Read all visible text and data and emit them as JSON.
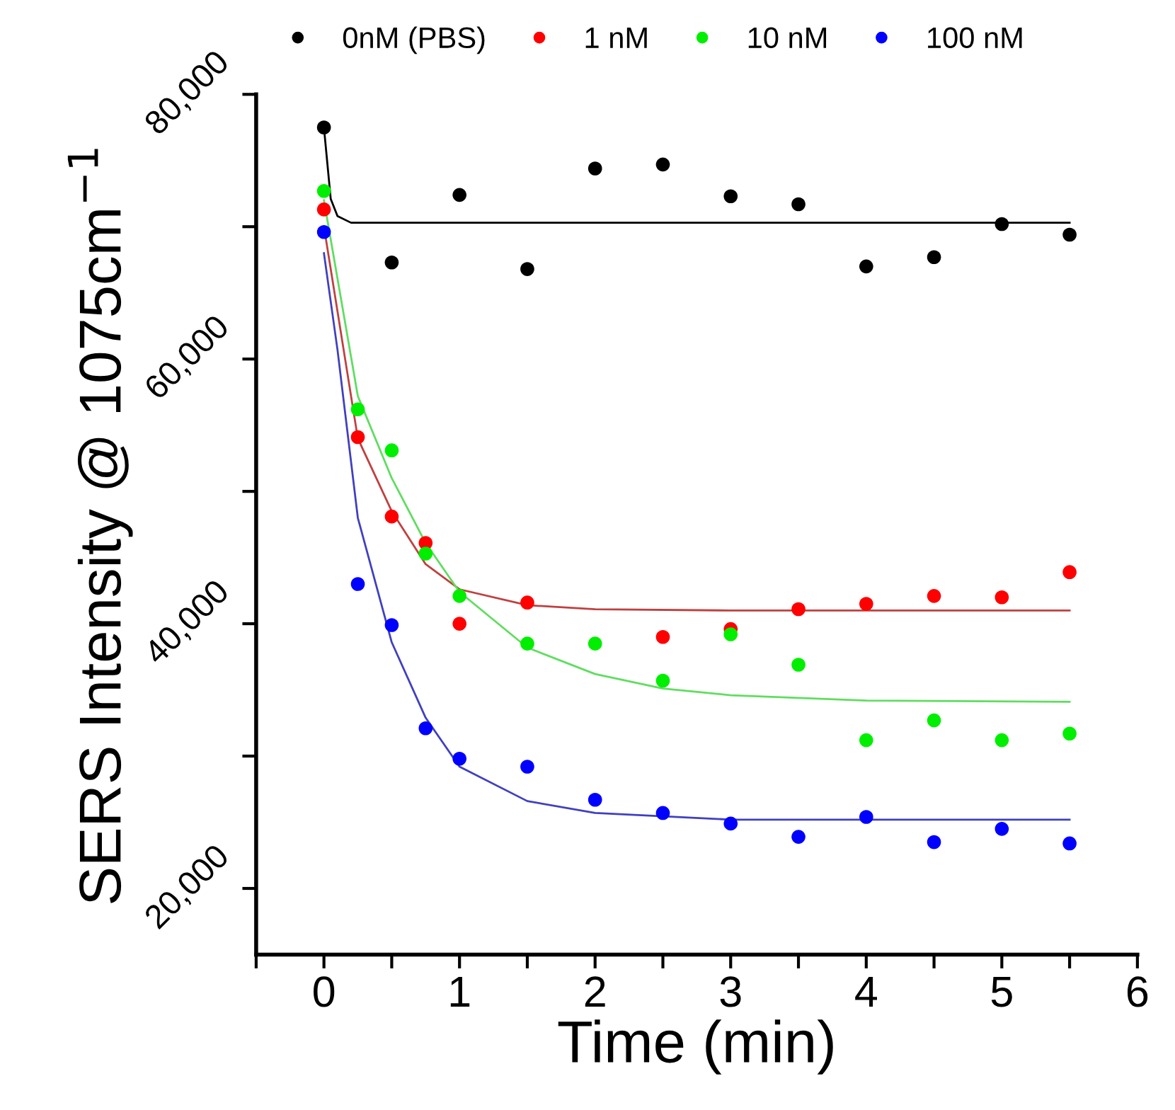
{
  "chart_data": {
    "type": "scatter",
    "xlabel": "Time (min)",
    "ylabel": "SERS Intensity @ 1075cm$^{−1}$",
    "xlim": [
      -0.5,
      6
    ],
    "xticks": [
      {
        "value": -0.5,
        "label": null
      },
      0,
      {
        "value": 0.5,
        "label": null
      },
      1,
      {
        "value": 1.5,
        "label": null
      },
      2,
      {
        "value": 2.5,
        "label": null
      },
      3,
      {
        "value": 3.5,
        "label": null
      },
      4,
      {
        "value": 4.5,
        "label": null
      },
      5,
      {
        "value": 5.5,
        "label": null
      },
      6
    ],
    "ylim": [
      15000,
      80000
    ],
    "yticks": [
      {
        "value": 20000,
        "label": "20,000"
      },
      {
        "value": 30000,
        "label": null
      },
      {
        "value": 40000,
        "label": "40,000"
      },
      {
        "value": 50000,
        "label": null
      },
      {
        "value": 60000,
        "label": "60,000"
      },
      {
        "value": 70000,
        "label": null
      },
      {
        "value": 80000,
        "label": "80,000"
      }
    ],
    "grid": false,
    "legend": "top",
    "series": [
      {
        "name": "0nM (PBS)",
        "marker": "circle",
        "color": "#000000",
        "x": [
          0,
          0.5,
          1,
          1.5,
          2,
          2.5,
          3,
          3.5,
          4,
          4.5,
          5,
          5.5
        ],
        "values": [
          77500,
          67300,
          72400,
          66800,
          74400,
          74700,
          72300,
          71700,
          67000,
          67700,
          70200,
          69400
        ]
      },
      {
        "name": "1 nM",
        "marker": "circle",
        "color": "#ff0000",
        "x": [
          0,
          0.25,
          0.5,
          0.75,
          1,
          1.5,
          2.5,
          3,
          3.5,
          4,
          4.5,
          5,
          5.5
        ],
        "values": [
          71300,
          54100,
          48100,
          46100,
          40000,
          41600,
          39000,
          39600,
          41100,
          41500,
          42100,
          42000,
          43900
        ]
      },
      {
        "name": "10 nM",
        "marker": "circle",
        "color": "#00ee00",
        "x": [
          0,
          0.25,
          0.5,
          0.75,
          1,
          1.5,
          2,
          2.5,
          3,
          3.5,
          4,
          4.5,
          5,
          5.5
        ],
        "values": [
          72700,
          56200,
          53100,
          45300,
          42100,
          38500,
          38500,
          35700,
          39200,
          36900,
          31200,
          32700,
          31200,
          31700
        ]
      },
      {
        "name": "100 nM",
        "marker": "circle",
        "color": "#0000ff",
        "x": [
          0,
          0.25,
          0.5,
          0.75,
          1,
          1.5,
          2,
          2.5,
          3,
          3.5,
          4,
          4.5,
          5,
          5.5
        ],
        "values": [
          69600,
          43000,
          39900,
          32100,
          29800,
          29200,
          26700,
          25700,
          24900,
          23900,
          25400,
          23500,
          24500,
          23400
        ]
      },
      {
        "type": "line",
        "marker": "none",
        "color": "#000000",
        "x": [
          0,
          0.05,
          0.1,
          0.2,
          1,
          3,
          5.5
        ],
        "values": [
          77500,
          72100,
          70800,
          70300,
          70300,
          70300,
          70300
        ]
      },
      {
        "type": "line",
        "marker": "none",
        "color": "#c04040",
        "x": [
          0,
          0.25,
          0.5,
          0.75,
          1,
          1.5,
          2,
          3,
          5.5
        ],
        "values": [
          70000,
          54000,
          48500,
          44500,
          42600,
          41400,
          41100,
          41000,
          41000
        ]
      },
      {
        "type": "line",
        "marker": "none",
        "color": "#60dd60",
        "x": [
          0,
          0.25,
          0.5,
          0.75,
          1,
          1.5,
          2,
          2.5,
          3,
          4,
          5.5
        ],
        "values": [
          72000,
          57200,
          51000,
          46100,
          42400,
          38200,
          36200,
          35100,
          34600,
          34200,
          34100
        ]
      },
      {
        "type": "line",
        "marker": "none",
        "color": "#4040c0",
        "x": [
          0,
          0.1,
          0.25,
          0.5,
          0.75,
          1,
          1.5,
          2,
          3,
          5.5
        ],
        "values": [
          68000,
          60700,
          48000,
          38600,
          32900,
          29200,
          26600,
          25700,
          25200,
          25200
        ]
      }
    ]
  }
}
